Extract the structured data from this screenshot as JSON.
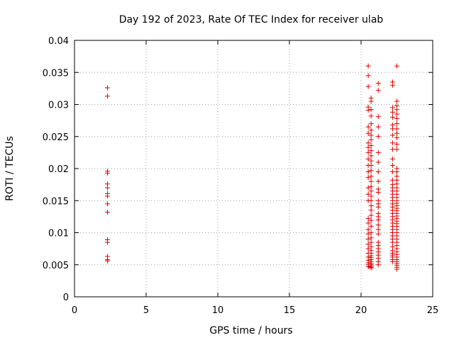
{
  "chart_data": {
    "type": "scatter",
    "title": "Day 192 of 2023, Rate Of TEC Index for receiver ulab",
    "xlabel": "GPS time / hours",
    "ylabel": "ROTI / TECUs",
    "xlim": [
      0,
      25
    ],
    "ylim": [
      0,
      0.04
    ],
    "xticks": [
      0,
      5,
      10,
      15,
      20,
      25
    ],
    "yticks": [
      0,
      0.005,
      0.01,
      0.015,
      0.02,
      0.025,
      0.03,
      0.035,
      0.04
    ],
    "xtick_labels": [
      "0",
      "5",
      "10",
      "15",
      "20",
      "25"
    ],
    "ytick_labels": [
      "0",
      "0.005",
      "0.01",
      "0.015",
      "0.02",
      "0.025",
      "0.03",
      "0.035",
      "0.04"
    ],
    "grid": true,
    "marker": "+",
    "color": "#e00000",
    "series": [
      {
        "x": [
          2.3,
          2.3,
          2.3,
          2.3,
          2.3,
          2.3,
          2.3,
          2.3,
          2.3,
          2.3,
          2.3,
          2.3,
          2.3,
          2.3,
          2.3,
          20.5,
          20.5,
          20.5,
          20.5,
          20.5,
          20.5,
          20.5,
          20.5,
          20.5,
          20.5,
          20.5,
          20.5,
          20.5,
          20.5,
          20.5,
          20.5,
          20.5,
          20.5,
          20.5,
          20.5,
          20.5,
          20.5,
          20.5,
          20.5,
          20.5,
          20.5,
          20.5,
          20.5,
          20.5,
          20.5,
          20.7,
          20.7,
          20.7,
          20.7,
          20.7,
          20.7,
          20.7,
          20.7,
          20.7,
          20.7,
          20.7,
          20.7,
          20.7,
          20.7,
          20.7,
          20.7,
          20.7,
          20.7,
          20.7,
          20.7,
          20.7,
          20.7,
          20.7,
          20.7,
          20.7,
          20.7,
          20.7,
          20.7,
          20.7,
          20.7,
          20.7,
          20.7,
          20.7,
          20.7,
          20.7,
          20.7,
          20.7,
          20.7,
          20.7,
          20.7,
          21.2,
          21.2,
          21.2,
          21.2,
          21.2,
          21.2,
          21.2,
          21.2,
          21.2,
          21.2,
          21.2,
          21.2,
          21.2,
          21.2,
          21.2,
          21.2,
          21.2,
          21.2,
          21.2,
          21.2,
          21.2,
          21.2,
          21.2,
          21.2,
          21.2,
          21.2,
          21.2,
          21.2,
          22.2,
          22.2,
          22.2,
          22.2,
          22.2,
          22.2,
          22.2,
          22.2,
          22.2,
          22.2,
          22.2,
          22.2,
          22.2,
          22.2,
          22.2,
          22.2,
          22.2,
          22.2,
          22.2,
          22.2,
          22.2,
          22.2,
          22.2,
          22.2,
          22.2,
          22.2,
          22.2,
          22.2,
          22.2,
          22.2,
          22.2,
          22.2,
          22.2,
          22.2,
          22.2,
          22.2,
          22.2,
          22.2,
          22.2,
          22.2,
          22.5,
          22.5,
          22.5,
          22.5,
          22.5,
          22.5,
          22.5,
          22.5,
          22.5,
          22.5,
          22.5,
          22.5,
          22.5,
          22.5,
          22.5,
          22.5,
          22.5,
          22.5,
          22.5,
          22.5,
          22.5,
          22.5,
          22.5,
          22.5,
          22.5,
          22.5,
          22.5,
          22.5,
          22.5,
          22.5,
          22.5,
          22.5,
          22.5,
          22.5,
          22.5,
          22.5,
          22.5,
          22.5,
          22.5,
          22.5,
          22.5,
          22.5,
          22.5,
          22.5,
          22.5,
          22.5,
          22.5,
          22.5
        ],
        "y": [
          0.0326,
          0.0313,
          0.0196,
          0.0193,
          0.0176,
          0.017,
          0.0161,
          0.0157,
          0.0145,
          0.0132,
          0.0089,
          0.0085,
          0.0063,
          0.0058,
          0.0056,
          0.036,
          0.0345,
          0.0328,
          0.0296,
          0.0291,
          0.0265,
          0.0255,
          0.024,
          0.0233,
          0.0225,
          0.0215,
          0.0205,
          0.0195,
          0.0186,
          0.017,
          0.016,
          0.015,
          0.0122,
          0.0115,
          0.0105,
          0.0098,
          0.009,
          0.0082,
          0.0075,
          0.0068,
          0.0062,
          0.0057,
          0.0053,
          0.005,
          0.0047,
          0.031,
          0.0305,
          0.0292,
          0.0282,
          0.027,
          0.026,
          0.0252,
          0.0245,
          0.0236,
          0.0228,
          0.022,
          0.0212,
          0.0205,
          0.0197,
          0.0188,
          0.018,
          0.0172,
          0.0165,
          0.0157,
          0.015,
          0.0142,
          0.0135,
          0.0127,
          0.0119,
          0.011,
          0.01,
          0.0092,
          0.0085,
          0.0078,
          0.0072,
          0.0068,
          0.0064,
          0.0061,
          0.0058,
          0.0055,
          0.0052,
          0.005,
          0.0048,
          0.0046,
          0.0045,
          0.0333,
          0.0322,
          0.0281,
          0.0265,
          0.025,
          0.0225,
          0.021,
          0.0195,
          0.018,
          0.0168,
          0.0163,
          0.015,
          0.0145,
          0.014,
          0.013,
          0.0125,
          0.012,
          0.0112,
          0.0105,
          0.0098,
          0.0085,
          0.008,
          0.0075,
          0.007,
          0.0065,
          0.006,
          0.0055,
          0.005,
          0.0335,
          0.033,
          0.0295,
          0.0288,
          0.028,
          0.0268,
          0.0262,
          0.0252,
          0.024,
          0.023,
          0.0215,
          0.0205,
          0.0195,
          0.0182,
          0.0175,
          0.017,
          0.0165,
          0.016,
          0.0155,
          0.015,
          0.0145,
          0.014,
          0.0135,
          0.013,
          0.0125,
          0.012,
          0.0115,
          0.011,
          0.0105,
          0.01,
          0.0095,
          0.009,
          0.0085,
          0.0078,
          0.0072,
          0.0068,
          0.0065,
          0.0062,
          0.0058,
          0.0055,
          0.036,
          0.0305,
          0.0298,
          0.0292,
          0.0285,
          0.0278,
          0.027,
          0.0262,
          0.0255,
          0.0248,
          0.0238,
          0.023,
          0.02,
          0.0195,
          0.0188,
          0.0182,
          0.0176,
          0.017,
          0.0165,
          0.016,
          0.0155,
          0.015,
          0.0146,
          0.0142,
          0.0138,
          0.0134,
          0.013,
          0.0126,
          0.0122,
          0.0118,
          0.0114,
          0.011,
          0.0105,
          0.01,
          0.0095,
          0.009,
          0.0085,
          0.008,
          0.0075,
          0.007,
          0.0066,
          0.0062,
          0.0058,
          0.0055,
          0.0052,
          0.0049,
          0.0046,
          0.0043
        ]
      }
    ]
  }
}
